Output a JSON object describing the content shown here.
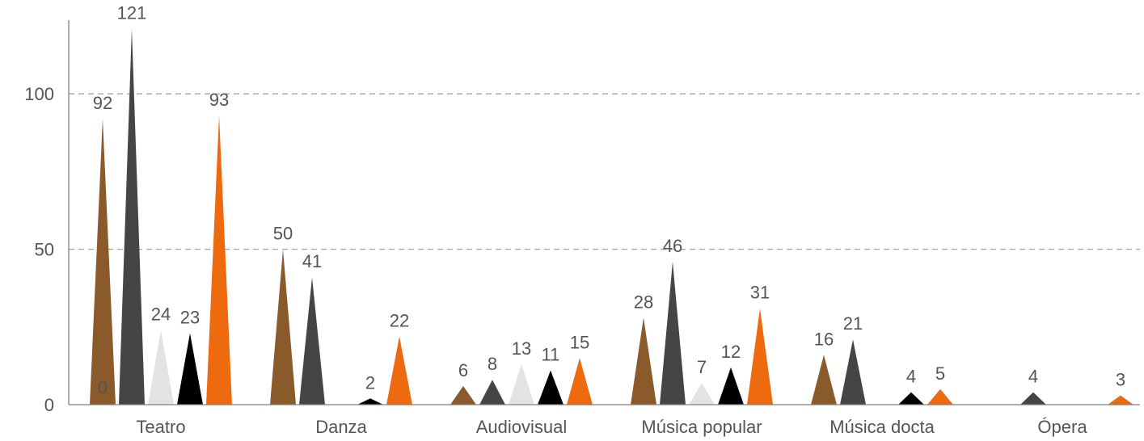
{
  "chart_data": {
    "type": "bar",
    "title": "",
    "xlabel": "",
    "ylabel": "",
    "categories": [
      "Teatro",
      "Danza",
      "Audiovisual",
      "Música popular",
      "Música docta",
      "Ópera"
    ],
    "series": [
      {
        "values": [
          0,
          50,
          6,
          28,
          16,
          0
        ],
        "color": "#8b5a2b"
      },
      {
        "values": [
          121,
          41,
          8,
          46,
          21,
          4
        ],
        "color": "#454545"
      },
      {
        "values": [
          24,
          0,
          13,
          7,
          0,
          0
        ],
        "color": "#e3e3e3"
      },
      {
        "values": [
          23,
          2,
          11,
          12,
          4,
          0
        ],
        "color": "#000000"
      },
      {
        "values": [
          93,
          22,
          15,
          31,
          5,
          3
        ],
        "color": "#ee6a0f"
      }
    ],
    "data_labels": [
      [
        "0",
        "50",
        "6",
        "28",
        "16",
        ""
      ],
      [
        "121",
        "41",
        "8",
        "46",
        "21",
        "4"
      ],
      [
        "24",
        "",
        "13",
        "7",
        "",
        ""
      ],
      [
        "23",
        "2",
        "11",
        "12",
        "4",
        ""
      ],
      [
        "93",
        "22",
        "15",
        "31",
        "5",
        "3"
      ]
    ],
    "extra_labels": [
      {
        "category_index": 0,
        "series_index": 0,
        "text": "92"
      }
    ],
    "yticks": [
      0,
      50,
      100
    ],
    "ylim": [
      0,
      125
    ],
    "grid": true,
    "bar_shape": "triangle",
    "legend": "none"
  }
}
